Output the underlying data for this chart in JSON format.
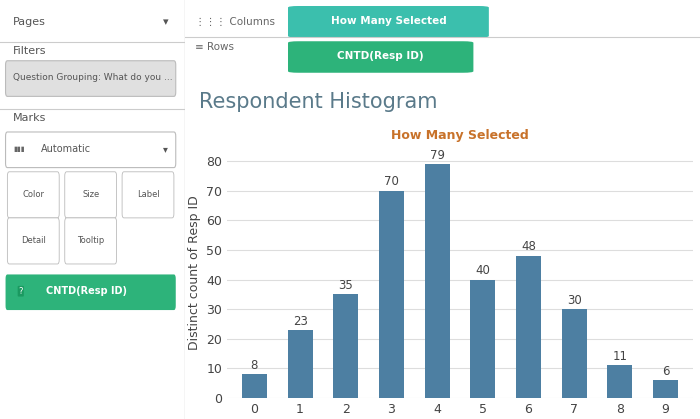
{
  "title": "Respondent Histogram",
  "xlabel_annotation": "How Many Selected",
  "ylabel": "Distinct count of Resp ID",
  "categories": [
    0,
    1,
    2,
    3,
    4,
    5,
    6,
    7,
    8,
    9
  ],
  "values": [
    8,
    23,
    35,
    70,
    79,
    40,
    48,
    30,
    11,
    6
  ],
  "bar_color": "#4d7fa2",
  "annotation_color": "#444444",
  "xlabel_annotation_color": "#c8722a",
  "title_color": "#5a7a8a",
  "background_color": "#ffffff",
  "sidebar_color": "#f0f0f0",
  "sidebar_border_color": "#cccccc",
  "panel_bg": "#f5f5f5",
  "ylim": [
    0,
    85
  ],
  "yticks": [
    0,
    10,
    20,
    30,
    40,
    50,
    60,
    70,
    80
  ],
  "grid_color": "#dddddd",
  "bar_width": 0.55,
  "title_fontsize": 15,
  "label_fontsize": 9,
  "tick_fontsize": 9,
  "annotation_fontsize": 8.5,
  "xlabel_annotation_fontsize": 9,
  "header_teal": "#3bbfad",
  "header_green": "#2db37a",
  "header_text": "#ffffff",
  "sidebar_text": "#555555",
  "columns_label": "How Many Selected",
  "rows_label": "CNTD(Resp ID)",
  "pages_label": "Pages",
  "filters_label": "Filters",
  "marks_label": "Marks",
  "filter_pill": "Question Grouping: What do you ...",
  "marks_type": "Automatic",
  "marks_legend": "CNTD(Resp ID)"
}
